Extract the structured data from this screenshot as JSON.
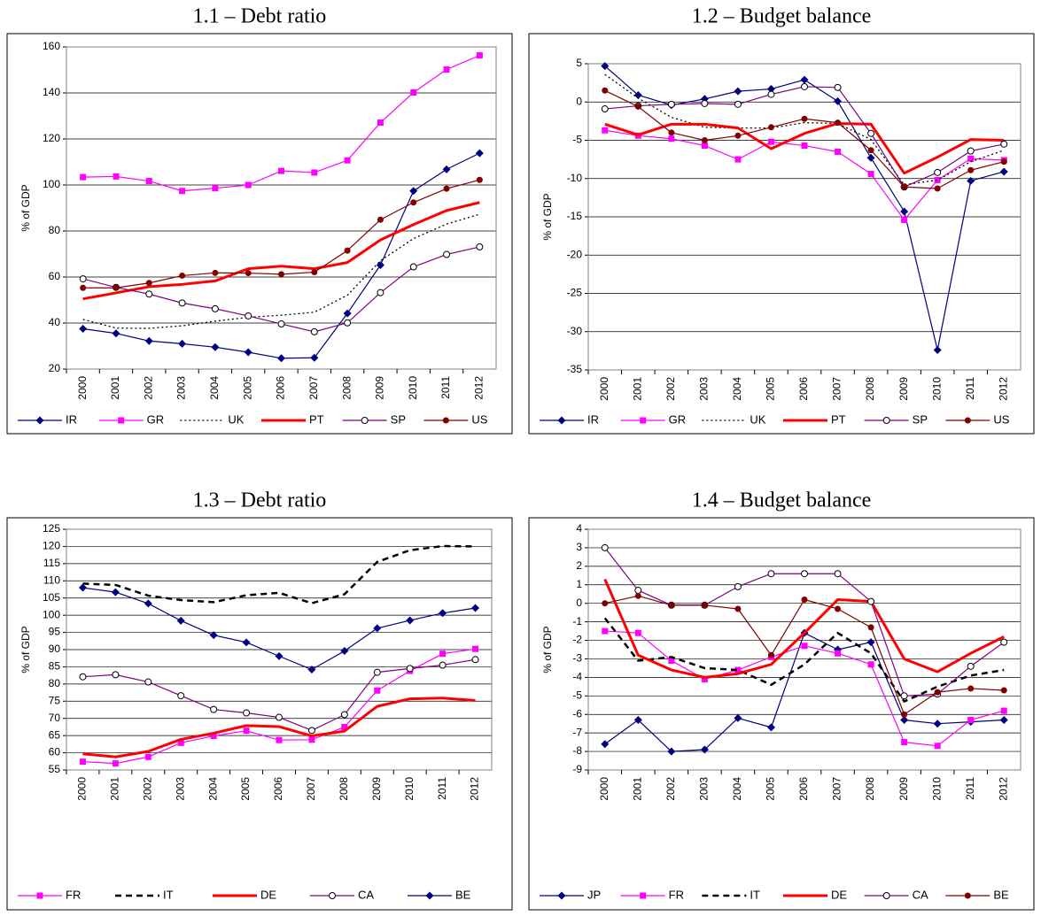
{
  "chart_data": [
    {
      "type": "line",
      "title": "1.1 – Debt ratio",
      "ylabel": "% of GDP",
      "categories": [
        "2000",
        "2001",
        "2002",
        "2003",
        "2004",
        "2005",
        "2006",
        "2007",
        "2008",
        "2009",
        "2010",
        "2011",
        "2012"
      ],
      "ylim": [
        20,
        160
      ],
      "yticks": [
        20,
        40,
        60,
        80,
        100,
        120,
        140,
        160
      ],
      "grid": true,
      "legend": "bottom",
      "series": [
        {
          "name": "IR",
          "color": "#000080",
          "marker": "diamond",
          "dash": "solid",
          "values": [
            37.5,
            35.5,
            32.2,
            31.0,
            29.5,
            27.3,
            24.7,
            24.9,
            44.2,
            65.2,
            97.4,
            106.8,
            113.8
          ]
        },
        {
          "name": "GR",
          "color": "#ff00ff",
          "marker": "square",
          "dash": "solid",
          "values": [
            103.4,
            103.7,
            101.7,
            97.4,
            98.6,
            100.0,
            106.1,
            105.4,
            110.7,
            127.1,
            140.2,
            150.2,
            156.3
          ]
        },
        {
          "name": "UK",
          "color": "#000000",
          "marker": "none",
          "dash": "dotted",
          "values": [
            41.6,
            37.8,
            37.7,
            38.8,
            40.8,
            42.5,
            43.4,
            44.7,
            52.1,
            67.1,
            76.7,
            83.0,
            87.3
          ]
        },
        {
          "name": "PT",
          "color": "#ff0000",
          "marker": "none",
          "dash": "thick",
          "values": [
            50.5,
            53.1,
            55.8,
            56.8,
            58.3,
            63.6,
            64.7,
            63.6,
            66.3,
            76.1,
            82.8,
            88.9,
            92.4
          ]
        },
        {
          "name": "SP",
          "color": "#800080",
          "marker": "circle-open",
          "dash": "solid",
          "values": [
            59.2,
            55.5,
            52.6,
            48.7,
            46.2,
            43.1,
            39.6,
            36.2,
            40.1,
            53.2,
            64.4,
            69.8,
            73.1
          ]
        },
        {
          "name": "US",
          "color": "#800000",
          "marker": "circle",
          "dash": "solid",
          "values": [
            55.3,
            55.3,
            57.4,
            60.6,
            61.8,
            61.7,
            61.2,
            62.1,
            71.5,
            84.9,
            92.4,
            98.4,
            102.2
          ]
        }
      ]
    },
    {
      "type": "line",
      "title": "1.2 – Budget balance",
      "ylabel": "% of GDP",
      "categories": [
        "2000",
        "2001",
        "2002",
        "2003",
        "2004",
        "2005",
        "2006",
        "2007",
        "2008",
        "2009",
        "2010",
        "2011",
        "2012"
      ],
      "ylim": [
        -35,
        5
      ],
      "yticks": [
        -35,
        -30,
        -25,
        -20,
        -15,
        -10,
        -5,
        0,
        5
      ],
      "grid": true,
      "legend": "bottom",
      "series": [
        {
          "name": "IR",
          "color": "#000080",
          "marker": "diamond",
          "dash": "solid",
          "values": [
            4.7,
            0.9,
            -0.4,
            0.4,
            1.4,
            1.7,
            2.9,
            0.1,
            -7.3,
            -14.3,
            -32.4,
            -10.3,
            -9.1
          ]
        },
        {
          "name": "GR",
          "color": "#ff00ff",
          "marker": "square",
          "dash": "solid",
          "values": [
            -3.7,
            -4.4,
            -4.8,
            -5.7,
            -7.5,
            -5.2,
            -5.7,
            -6.5,
            -9.4,
            -15.4,
            -10.2,
            -7.4,
            -7.6
          ]
        },
        {
          "name": "UK",
          "color": "#000000",
          "marker": "none",
          "dash": "dotted",
          "values": [
            3.6,
            0.5,
            -2.0,
            -3.3,
            -3.4,
            -3.4,
            -2.7,
            -2.8,
            -4.9,
            -10.8,
            -10.2,
            -7.8,
            -6.3
          ]
        },
        {
          "name": "PT",
          "color": "#ff0000",
          "marker": "none",
          "dash": "thick",
          "values": [
            -2.9,
            -4.3,
            -2.9,
            -2.9,
            -3.4,
            -6.1,
            -4.1,
            -2.8,
            -2.9,
            -9.3,
            -7.2,
            -4.9,
            -5.0
          ]
        },
        {
          "name": "SP",
          "color": "#800080",
          "marker": "circle-open",
          "dash": "solid",
          "values": [
            -0.9,
            -0.5,
            -0.3,
            -0.2,
            -0.3,
            1.0,
            2.0,
            1.9,
            -4.1,
            -11.1,
            -9.2,
            -6.4,
            -5.5
          ]
        },
        {
          "name": "US",
          "color": "#800000",
          "marker": "circle",
          "dash": "solid",
          "values": [
            1.5,
            -0.6,
            -4.0,
            -5.0,
            -4.4,
            -3.3,
            -2.2,
            -2.7,
            -6.3,
            -11.1,
            -11.3,
            -8.9,
            -7.8
          ]
        }
      ]
    },
    {
      "type": "line",
      "title": "1.3 – Debt ratio",
      "ylabel": "% of GDP",
      "categories": [
        "2000",
        "2001",
        "2002",
        "2003",
        "2004",
        "2005",
        "2006",
        "2007",
        "2008",
        "2009",
        "2010",
        "2011",
        "2012"
      ],
      "ylim": [
        55,
        125
      ],
      "yticks": [
        55,
        60,
        65,
        70,
        75,
        80,
        85,
        90,
        95,
        100,
        105,
        110,
        115,
        120,
        125
      ],
      "grid": true,
      "legend": "bottom",
      "series": [
        {
          "name": "FR",
          "color": "#ff00ff",
          "marker": "square",
          "dash": "solid",
          "values": [
            57.4,
            56.9,
            58.8,
            62.9,
            64.9,
            66.4,
            63.7,
            63.8,
            67.5,
            78.1,
            83.8,
            88.8,
            90.2
          ]
        },
        {
          "name": "IT",
          "color": "#000000",
          "marker": "none",
          "dash": "dashed",
          "values": [
            109.2,
            108.8,
            105.7,
            104.4,
            103.8,
            105.8,
            106.5,
            103.5,
            106.1,
            115.5,
            118.9,
            120.1,
            120.0
          ]
        },
        {
          "name": "DE",
          "color": "#ff0000",
          "marker": "none",
          "dash": "thick",
          "values": [
            59.7,
            58.8,
            60.4,
            63.9,
            65.7,
            67.9,
            67.6,
            64.9,
            66.3,
            73.5,
            75.7,
            75.9,
            75.2
          ]
        },
        {
          "name": "CA",
          "color": "#800080",
          "marker": "circle-open",
          "dash": "solid",
          "values": [
            82.1,
            82.7,
            80.6,
            76.6,
            72.6,
            71.6,
            70.3,
            66.5,
            71.1,
            83.4,
            84.5,
            85.5,
            87.1
          ]
        },
        {
          "name": "BE",
          "color": "#000080",
          "marker": "diamond",
          "dash": "solid",
          "values": [
            108.0,
            106.7,
            103.4,
            98.4,
            94.2,
            92.1,
            88.1,
            84.2,
            89.6,
            96.2,
            98.5,
            100.6,
            102.1
          ]
        }
      ]
    },
    {
      "type": "line",
      "title": "1.4 – Budget balance",
      "ylabel": "% of GDP",
      "categories": [
        "2000",
        "2001",
        "2002",
        "2003",
        "2004",
        "2005",
        "2006",
        "2007",
        "2008",
        "2009",
        "2010",
        "2011",
        "2012"
      ],
      "ylim": [
        -9,
        4
      ],
      "yticks": [
        -9,
        -8,
        -7,
        -6,
        -5,
        -4,
        -3,
        -2,
        -1,
        0,
        1,
        2,
        3,
        4
      ],
      "grid": true,
      "legend": "bottom",
      "series": [
        {
          "name": "JP",
          "color": "#000080",
          "marker": "diamond",
          "dash": "solid",
          "values": [
            -7.6,
            -6.3,
            -8.0,
            -7.9,
            -6.2,
            -6.7,
            -1.6,
            -2.5,
            -2.1,
            -6.3,
            -6.5,
            -6.4,
            -6.3
          ]
        },
        {
          "name": "FR",
          "color": "#ff00ff",
          "marker": "square",
          "dash": "solid",
          "values": [
            -1.5,
            -1.6,
            -3.1,
            -4.1,
            -3.6,
            -2.9,
            -2.3,
            -2.7,
            -3.3,
            -7.5,
            -7.7,
            -6.3,
            -5.8
          ]
        },
        {
          "name": "IT",
          "color": "#000000",
          "marker": "none",
          "dash": "dashed",
          "values": [
            -0.8,
            -3.1,
            -2.9,
            -3.5,
            -3.6,
            -4.4,
            -3.3,
            -1.6,
            -2.7,
            -5.3,
            -4.5,
            -3.9,
            -3.6
          ]
        },
        {
          "name": "DE",
          "color": "#ff0000",
          "marker": "none",
          "dash": "thick",
          "values": [
            1.3,
            -2.8,
            -3.6,
            -4.0,
            -3.8,
            -3.3,
            -1.6,
            0.2,
            0.1,
            -3.0,
            -3.7,
            -2.7,
            -1.8
          ]
        },
        {
          "name": "CA",
          "color": "#800080",
          "marker": "circle-open",
          "dash": "solid",
          "values": [
            3.0,
            0.7,
            -0.1,
            -0.1,
            0.9,
            1.6,
            1.6,
            1.6,
            0.1,
            -5.0,
            -4.9,
            -3.4,
            -2.1
          ]
        },
        {
          "name": "BE",
          "color": "#800000",
          "marker": "circle",
          "dash": "solid",
          "values": [
            0.0,
            0.4,
            -0.1,
            -0.1,
            -0.3,
            -2.8,
            0.2,
            -0.3,
            -1.3,
            -6.0,
            -4.8,
            -4.6,
            -4.7
          ]
        }
      ]
    }
  ]
}
